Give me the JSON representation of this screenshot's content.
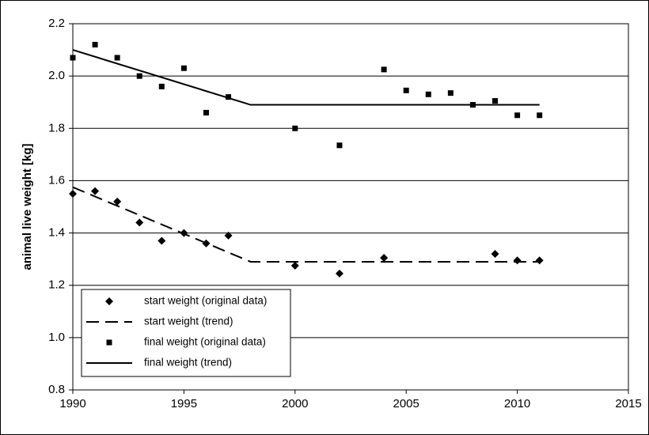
{
  "chart_data": {
    "type": "scatter",
    "title": "",
    "xlabel": "",
    "ylabel": "animal live weight [kg]",
    "xlim": [
      1990,
      2015
    ],
    "ylim": [
      0.8,
      2.2
    ],
    "x_ticks": [
      1990,
      1995,
      2000,
      2005,
      2010,
      2015
    ],
    "y_ticks": [
      0.8,
      1.0,
      1.2,
      1.4,
      1.6,
      1.8,
      2.0,
      2.2
    ],
    "y_tick_labels": [
      "0.8",
      "1.0",
      "1.2",
      "1.4",
      "1.6",
      "1.8",
      "2.0",
      "2.2"
    ],
    "grid": "horizontal",
    "legend_position": "bottom-left",
    "series": [
      {
        "name": "start weight (original data)",
        "style": "diamond-marker",
        "color": "#000000",
        "points": [
          [
            1990,
            1.55
          ],
          [
            1991,
            1.56
          ],
          [
            1992,
            1.52
          ],
          [
            1993,
            1.44
          ],
          [
            1994,
            1.37
          ],
          [
            1995,
            1.4
          ],
          [
            1996,
            1.36
          ],
          [
            1997,
            1.39
          ],
          [
            2000,
            1.275
          ],
          [
            2002,
            1.245
          ],
          [
            2004,
            1.305
          ],
          [
            2009,
            1.32
          ],
          [
            2010,
            1.295
          ],
          [
            2011,
            1.295
          ]
        ]
      },
      {
        "name": "start weight (trend)",
        "style": "dashed-line",
        "color": "#000000",
        "points": [
          [
            1990,
            1.575
          ],
          [
            1998,
            1.29
          ],
          [
            2011,
            1.29
          ]
        ]
      },
      {
        "name": "final weight (original data)",
        "style": "square-marker",
        "color": "#000000",
        "points": [
          [
            1990,
            2.07
          ],
          [
            1991,
            2.12
          ],
          [
            1992,
            2.07
          ],
          [
            1993,
            2.0
          ],
          [
            1994,
            1.96
          ],
          [
            1995,
            2.03
          ],
          [
            1996,
            1.86
          ],
          [
            1997,
            1.92
          ],
          [
            2000,
            1.8
          ],
          [
            2002,
            1.735
          ],
          [
            2004,
            2.025
          ],
          [
            2005,
            1.945
          ],
          [
            2006,
            1.93
          ],
          [
            2007,
            1.935
          ],
          [
            2008,
            1.89
          ],
          [
            2009,
            1.905
          ],
          [
            2010,
            1.85
          ],
          [
            2011,
            1.85
          ]
        ]
      },
      {
        "name": "final weight (trend)",
        "style": "solid-line",
        "color": "#000000",
        "points": [
          [
            1990,
            2.1
          ],
          [
            1998,
            1.89
          ],
          [
            2011,
            1.89
          ]
        ]
      }
    ]
  }
}
